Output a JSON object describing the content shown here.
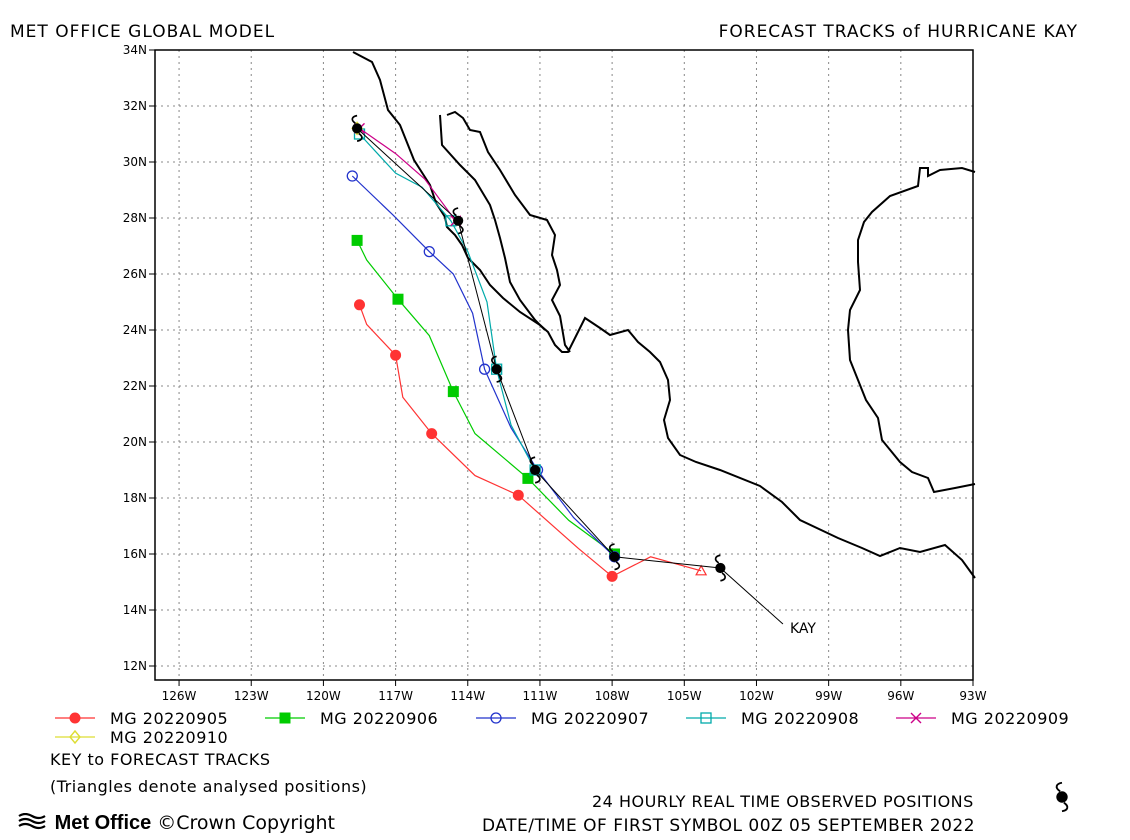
{
  "header": {
    "left_title": "MET OFFICE GLOBAL MODEL",
    "right_title": "FORECAST TRACKS of HURRICANE KAY"
  },
  "storm_label": "KAY",
  "footer": {
    "key_title": "KEY to FORECAST TRACKS",
    "key_note": "(Triangles denote analysed positions)",
    "observed_note": "24 HOURLY REAL TIME OBSERVED POSITIONS",
    "datetime_note": "DATE/TIME OF FIRST SYMBOL 00Z 05 SEPTEMBER 2022",
    "brand": "Met Office",
    "copyright": "©Crown Copyright"
  },
  "chart_data": {
    "type": "line",
    "title": "FORECAST TRACKS of HURRICANE KAY",
    "xlabel": "",
    "ylabel": "",
    "xlim": [
      -127,
      -93
    ],
    "ylim": [
      11.5,
      34
    ],
    "x_ticks": [
      "126W",
      "123W",
      "120W",
      "117W",
      "114W",
      "111W",
      "108W",
      "105W",
      "102W",
      "99W",
      "96W",
      "93W"
    ],
    "y_ticks": [
      "12N",
      "14N",
      "16N",
      "18N",
      "20N",
      "22N",
      "24N",
      "26N",
      "28N",
      "30N",
      "32N",
      "34N"
    ],
    "grid": true,
    "legend_position": "bottom",
    "colors": {
      "MG 20220905": "#ff3333",
      "MG 20220906": "#00cc00",
      "MG 20220907": "#2233cc",
      "MG 20220908": "#00aaaa",
      "MG 20220909": "#cc0088",
      "MG 20220910": "#dddd33",
      "observed": "#000000"
    },
    "observed": {
      "name": "KAY",
      "points": [
        [
          -103.5,
          15.5
        ],
        [
          -107.9,
          15.9
        ],
        [
          -111.2,
          19.0
        ],
        [
          -112.8,
          22.6
        ],
        [
          -114.4,
          27.9
        ],
        [
          -118.6,
          31.2
        ]
      ],
      "tail": [
        [
          -103.5,
          15.5
        ],
        [
          -100.9,
          13.5
        ]
      ]
    },
    "series": [
      {
        "name": "MG 20220905",
        "marker": "filled-circle",
        "points": [
          [
            -104.3,
            15.4
          ],
          [
            -106.4,
            15.9
          ],
          [
            -108.0,
            15.2
          ],
          [
            -109.4,
            16.2
          ],
          [
            -111.9,
            18.1
          ],
          [
            -113.7,
            18.8
          ],
          [
            -115.5,
            20.3
          ],
          [
            -116.7,
            21.6
          ],
          [
            -117.0,
            23.1
          ],
          [
            -118.2,
            24.2
          ],
          [
            -118.5,
            24.9
          ]
        ],
        "symbols": [
          [
            -108.0,
            15.2
          ],
          [
            -111.9,
            18.1
          ],
          [
            -115.5,
            20.3
          ],
          [
            -117.0,
            23.1
          ],
          [
            -118.5,
            24.9
          ]
        ]
      },
      {
        "name": "MG 20220906",
        "marker": "filled-square",
        "points": [
          [
            -107.9,
            16.0
          ],
          [
            -109.8,
            17.2
          ],
          [
            -111.5,
            18.7
          ],
          [
            -113.7,
            20.3
          ],
          [
            -114.6,
            21.8
          ],
          [
            -115.6,
            23.8
          ],
          [
            -116.9,
            25.1
          ],
          [
            -118.2,
            26.5
          ],
          [
            -118.6,
            27.2
          ]
        ],
        "symbols": [
          [
            -107.9,
            16.0
          ],
          [
            -111.5,
            18.7
          ],
          [
            -114.6,
            21.8
          ],
          [
            -116.9,
            25.1
          ],
          [
            -118.6,
            27.2
          ]
        ]
      },
      {
        "name": "MG 20220907",
        "marker": "open-circle",
        "points": [
          [
            -107.9,
            15.9
          ],
          [
            -109.6,
            17.3
          ],
          [
            -111.1,
            19.0
          ],
          [
            -112.2,
            20.5
          ],
          [
            -113.3,
            22.6
          ],
          [
            -113.8,
            24.6
          ],
          [
            -114.6,
            26.0
          ],
          [
            -115.6,
            26.8
          ],
          [
            -117.1,
            28.1
          ],
          [
            -118.8,
            29.5
          ]
        ],
        "symbols": [
          [
            -107.9,
            15.9
          ],
          [
            -111.1,
            19.0
          ],
          [
            -113.3,
            22.6
          ],
          [
            -115.6,
            26.8
          ],
          [
            -118.8,
            29.5
          ]
        ]
      },
      {
        "name": "MG 20220908",
        "marker": "open-square",
        "points": [
          [
            -111.2,
            19.0
          ],
          [
            -112.2,
            20.6
          ],
          [
            -112.8,
            22.6
          ],
          [
            -113.2,
            25.0
          ],
          [
            -114.0,
            26.8
          ],
          [
            -114.7,
            27.9
          ],
          [
            -115.9,
            29.1
          ],
          [
            -117.0,
            29.6
          ],
          [
            -118.5,
            31.0
          ]
        ],
        "symbols": [
          [
            -111.2,
            19.0
          ],
          [
            -112.8,
            22.6
          ],
          [
            -114.7,
            27.9
          ],
          [
            -118.5,
            31.0
          ]
        ]
      },
      {
        "name": "MG 20220909",
        "marker": "cross",
        "points": [
          [
            -114.5,
            27.9
          ],
          [
            -115.8,
            29.4
          ],
          [
            -117.0,
            30.3
          ],
          [
            -118.5,
            31.2
          ]
        ],
        "symbols": [
          [
            -114.5,
            27.9
          ],
          [
            -118.5,
            31.2
          ]
        ]
      },
      {
        "name": "MG 20220910",
        "marker": "open-diamond",
        "points": [
          [
            -118.6,
            31.2
          ]
        ],
        "symbols": [
          [
            -118.6,
            31.2
          ]
        ]
      }
    ],
    "analysed_positions": [
      [
        -104.3,
        15.4
      ],
      [
        -108.0,
        15.9
      ],
      [
        -111.2,
        19.0
      ],
      [
        -112.8,
        22.6
      ],
      [
        -114.6,
        27.9
      ],
      [
        -118.6,
        31.2
      ]
    ]
  }
}
